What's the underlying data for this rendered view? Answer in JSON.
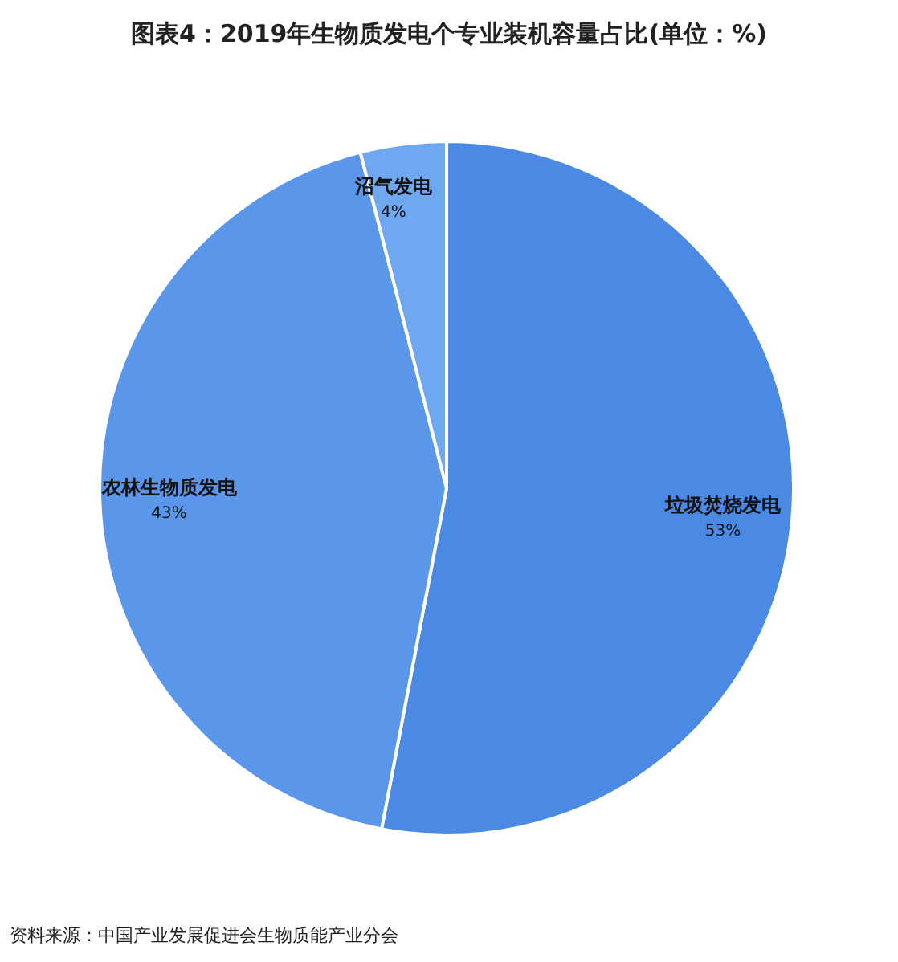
{
  "chart_data": {
    "type": "pie",
    "title": "图表4：2019年生物质发电个专业装机容量占比(单位：%)",
    "categories": [
      "垃圾焚烧发电",
      "农林生物质发电",
      "沼气发电"
    ],
    "values": [
      53,
      43,
      4
    ],
    "colors": [
      "#4a8ae4",
      "#5a97ea",
      "#6ea8f0"
    ],
    "value_labels": [
      "53%",
      "43%",
      "4%"
    ],
    "annotations": [
      "资料来源：中国产业发展促进会生物质能产业分会"
    ]
  }
}
